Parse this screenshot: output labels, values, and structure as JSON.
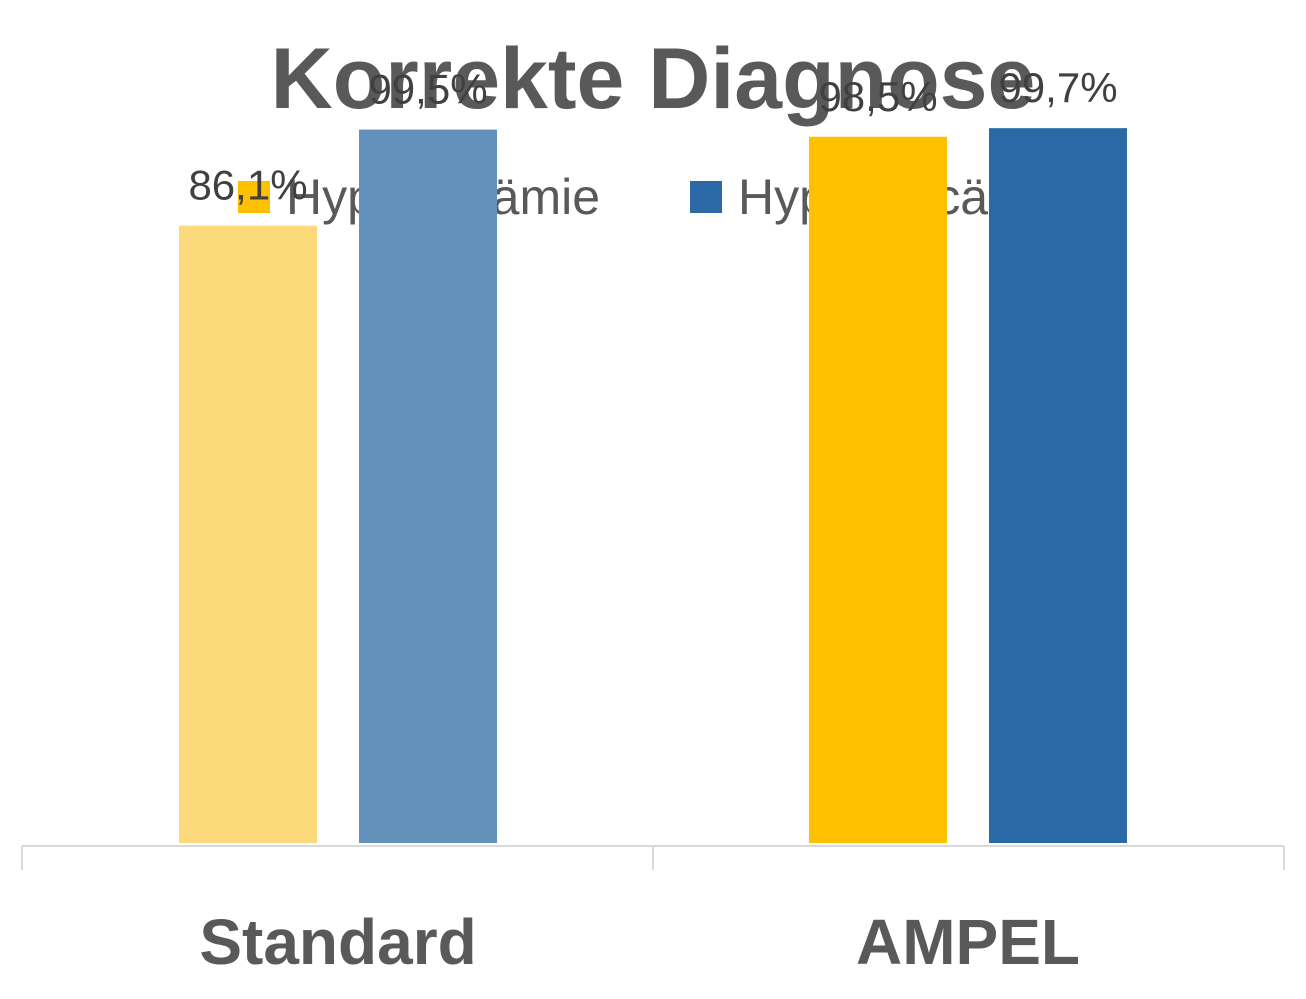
{
  "chart_data": {
    "type": "bar",
    "title": "Korrekte Diagnose",
    "categories": [
      "Standard",
      "AMPEL"
    ],
    "series": [
      {
        "name": "Hypocalcämie",
        "values": [
          86.1,
          98.5
        ],
        "labels": [
          "86,1%",
          "98,5%"
        ]
      },
      {
        "name": "Hypercalcämie",
        "values": [
          99.5,
          99.7
        ],
        "labels": [
          "99,5%",
          "99,7%"
        ]
      }
    ],
    "bar_colors": [
      [
        "#fcd97a",
        "#ffc000"
      ],
      [
        "#6391bb",
        "#2b6aa6"
      ]
    ],
    "legend_colors": [
      "#ffc000",
      "#2b6aa6"
    ],
    "legend_position": "top",
    "ylim": [
      0,
      100
    ],
    "grid": false,
    "xlabel": "",
    "ylabel": ""
  }
}
